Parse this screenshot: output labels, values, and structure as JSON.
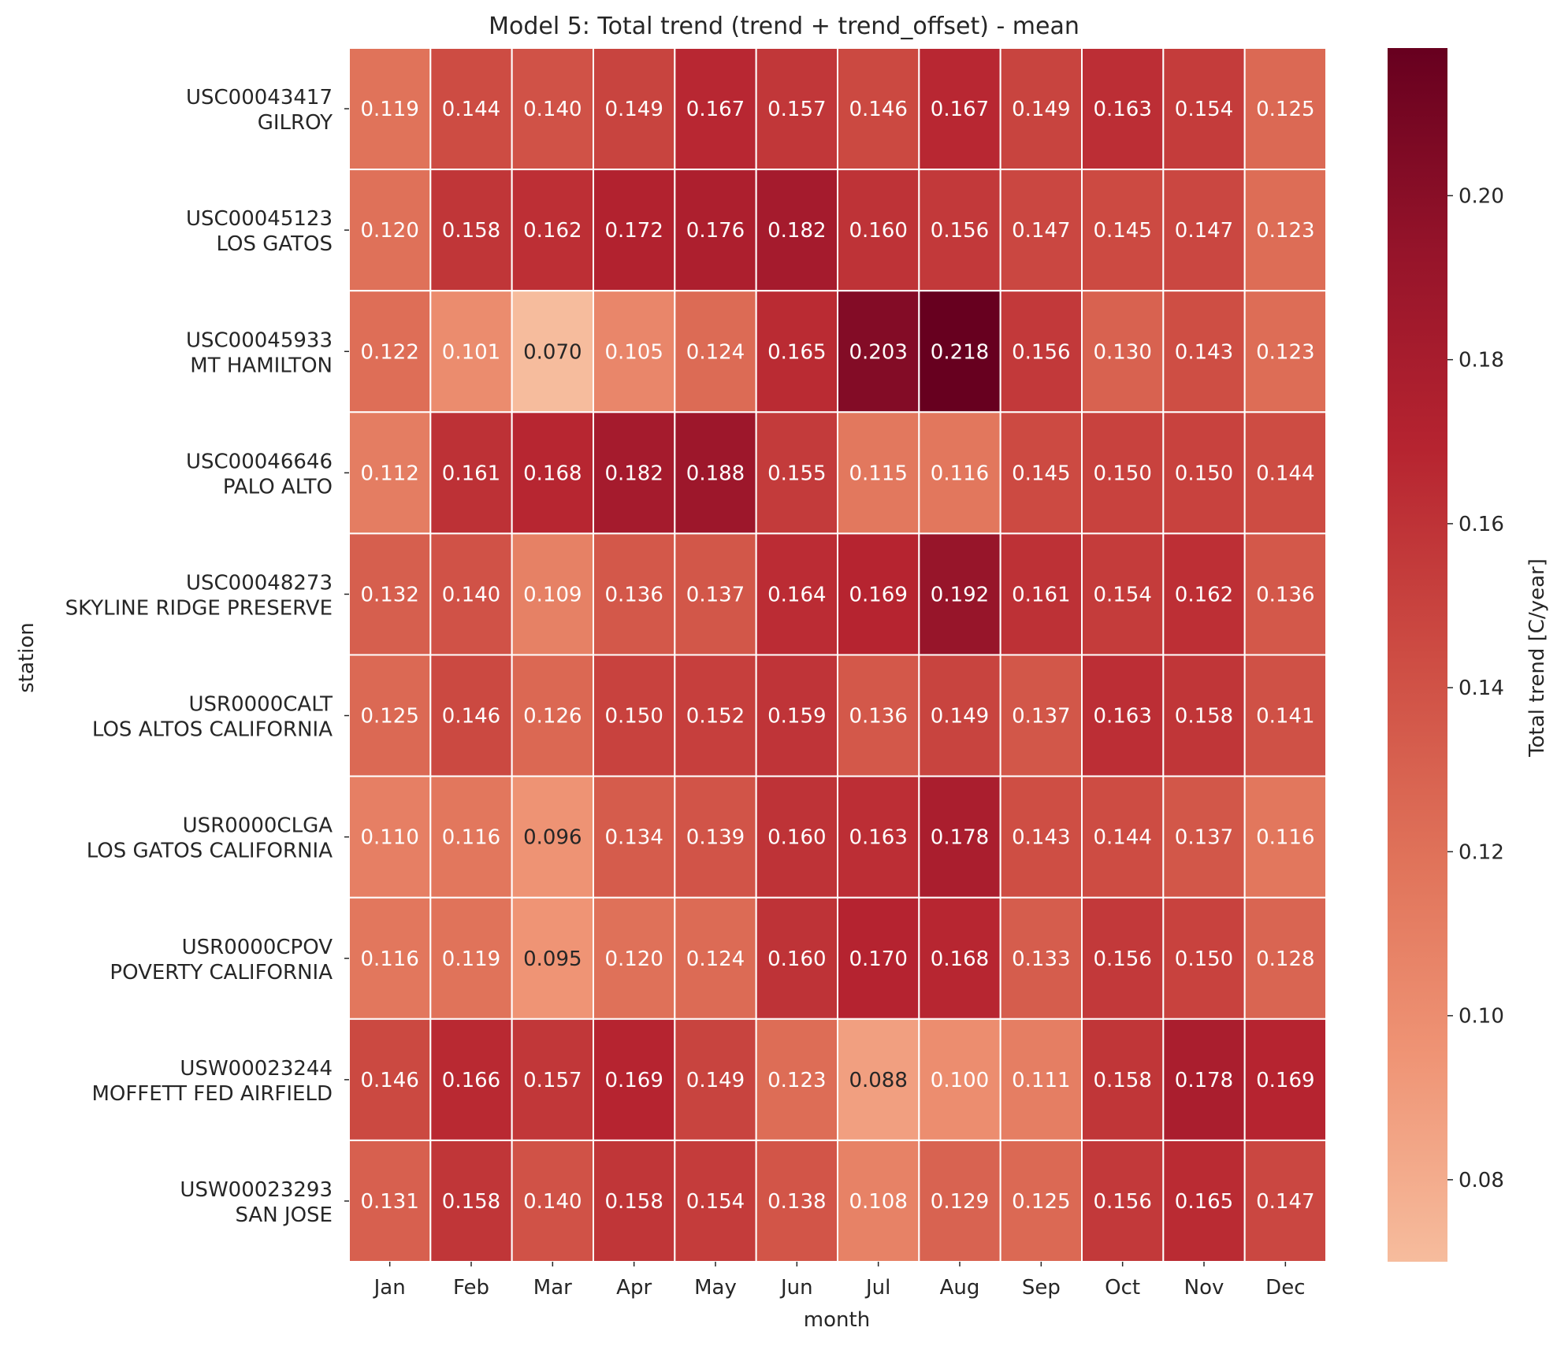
{
  "chart_data": {
    "type": "heatmap",
    "title": "Model 5: Total trend (trend + trend_offset) - mean",
    "xlabel": "month",
    "ylabel": "station",
    "colorbar_label": "Total trend [C/year]",
    "colorbar_range": [
      0.07,
      0.218
    ],
    "colorbar_ticks": [
      "0.08",
      "0.10",
      "0.12",
      "0.14",
      "0.16",
      "0.18",
      "0.20"
    ],
    "colormap": "RdBu_r (warm half)",
    "months": [
      "Jan",
      "Feb",
      "Mar",
      "Apr",
      "May",
      "Jun",
      "Jul",
      "Aug",
      "Sep",
      "Oct",
      "Nov",
      "Dec"
    ],
    "stations": [
      {
        "id": "USC00043417",
        "name": "GILROY"
      },
      {
        "id": "USC00045123",
        "name": "LOS GATOS"
      },
      {
        "id": "USC00045933",
        "name": "MT HAMILTON"
      },
      {
        "id": "USC00046646",
        "name": "PALO ALTO"
      },
      {
        "id": "USC00048273",
        "name": "SKYLINE RIDGE PRESERVE"
      },
      {
        "id": "USR0000CALT",
        "name": "LOS ALTOS CALIFORNIA"
      },
      {
        "id": "USR0000CLGA",
        "name": "LOS GATOS CALIFORNIA"
      },
      {
        "id": "USR0000CPOV",
        "name": "POVERTY CALIFORNIA"
      },
      {
        "id": "USW00023244",
        "name": "MOFFETT FED AIRFIELD"
      },
      {
        "id": "USW00023293",
        "name": "SAN JOSE"
      }
    ],
    "values": [
      [
        0.119,
        0.144,
        0.14,
        0.149,
        0.167,
        0.157,
        0.146,
        0.167,
        0.149,
        0.163,
        0.154,
        0.125
      ],
      [
        0.12,
        0.158,
        0.162,
        0.172,
        0.176,
        0.182,
        0.16,
        0.156,
        0.147,
        0.145,
        0.147,
        0.123
      ],
      [
        0.122,
        0.101,
        0.07,
        0.105,
        0.124,
        0.165,
        0.203,
        0.218,
        0.156,
        0.13,
        0.143,
        0.123
      ],
      [
        0.112,
        0.161,
        0.168,
        0.182,
        0.188,
        0.155,
        0.115,
        0.116,
        0.145,
        0.15,
        0.15,
        0.144
      ],
      [
        0.132,
        0.14,
        0.109,
        0.136,
        0.137,
        0.164,
        0.169,
        0.192,
        0.161,
        0.154,
        0.162,
        0.136
      ],
      [
        0.125,
        0.146,
        0.126,
        0.15,
        0.152,
        0.159,
        0.136,
        0.149,
        0.137,
        0.163,
        0.158,
        0.141
      ],
      [
        0.11,
        0.116,
        0.096,
        0.134,
        0.139,
        0.16,
        0.163,
        0.178,
        0.143,
        0.144,
        0.137,
        0.116
      ],
      [
        0.116,
        0.119,
        0.095,
        0.12,
        0.124,
        0.16,
        0.17,
        0.168,
        0.133,
        0.156,
        0.15,
        0.128
      ],
      [
        0.146,
        0.166,
        0.157,
        0.169,
        0.149,
        0.123,
        0.088,
        0.1,
        0.111,
        0.158,
        0.178,
        0.169
      ],
      [
        0.131,
        0.158,
        0.14,
        0.158,
        0.154,
        0.138,
        0.108,
        0.129,
        0.125,
        0.156,
        0.165,
        0.147
      ]
    ]
  }
}
